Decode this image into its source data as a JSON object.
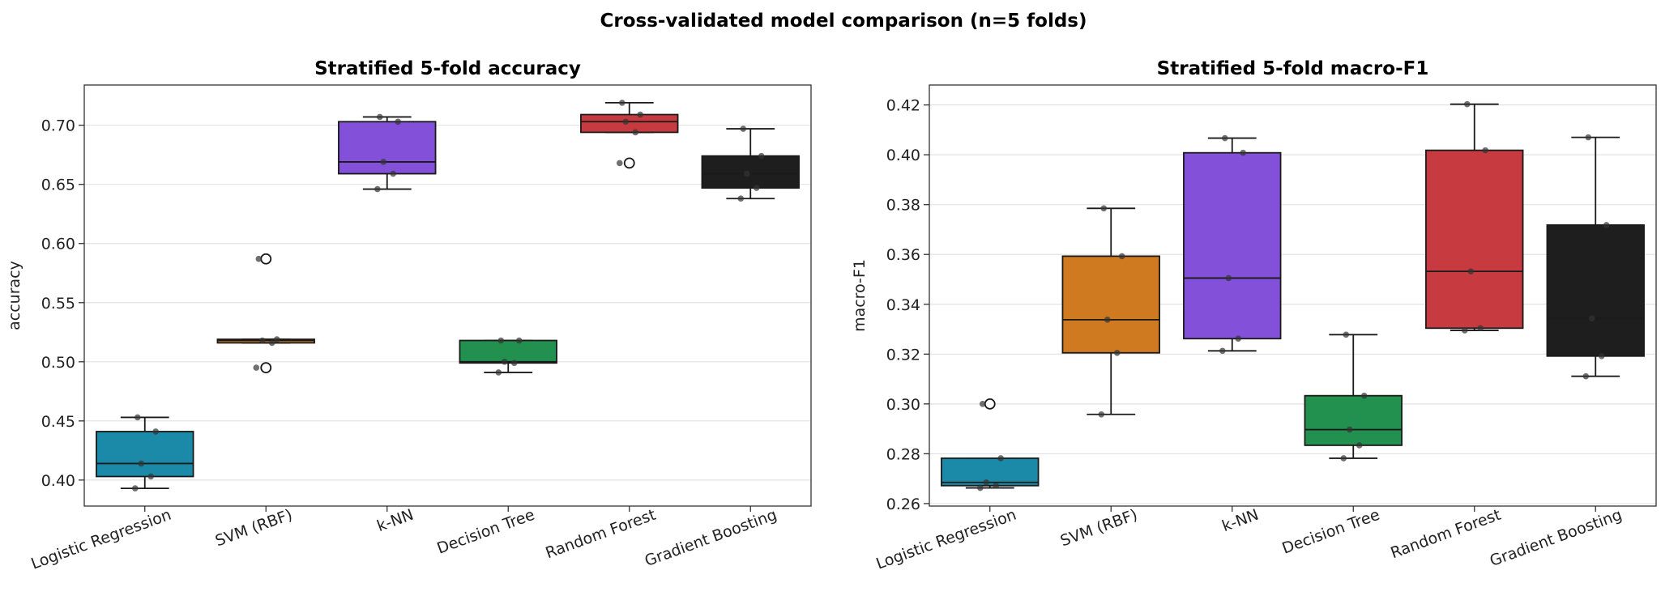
{
  "figure": {
    "suptitle": "Cross-validated model comparison (n=5 folds)"
  },
  "chart_data": [
    {
      "type": "box",
      "title": "Stratified 5-fold accuracy",
      "xlabel": "",
      "ylabel": "accuracy",
      "ylim": [
        0.378,
        0.734
      ],
      "yticks": [
        0.4,
        0.45,
        0.5,
        0.55,
        0.6,
        0.65,
        0.7
      ],
      "ytick_labels": [
        "0.40",
        "0.45",
        "0.50",
        "0.55",
        "0.60",
        "0.65",
        "0.70"
      ],
      "grid": "y",
      "categories": [
        "Logistic Regression",
        "SVM (RBF)",
        "k-NN",
        "Decision Tree",
        "Random Forest",
        "Gradient Boosting"
      ],
      "colors": [
        "#1a8aa8",
        "#cf7a20",
        "#8350d9",
        "#229150",
        "#c73a3f",
        "#1e1e1e"
      ],
      "boxes": [
        {
          "q1": 0.403,
          "median": 0.414,
          "q3": 0.441,
          "whisker_low": 0.393,
          "whisker_high": 0.453,
          "outliers": [],
          "points": [
            0.393,
            0.403,
            0.414,
            0.441,
            0.453
          ]
        },
        {
          "q1": 0.516,
          "median": 0.518,
          "q3": 0.519,
          "whisker_low": 0.516,
          "whisker_high": 0.519,
          "outliers": [
            0.495,
            0.587
          ],
          "points": [
            0.495,
            0.516,
            0.518,
            0.519,
            0.587
          ]
        },
        {
          "q1": 0.659,
          "median": 0.669,
          "q3": 0.703,
          "whisker_low": 0.646,
          "whisker_high": 0.707,
          "outliers": [],
          "points": [
            0.646,
            0.659,
            0.669,
            0.703,
            0.707
          ]
        },
        {
          "q1": 0.499,
          "median": 0.5,
          "q3": 0.518,
          "whisker_low": 0.491,
          "whisker_high": 0.518,
          "outliers": [],
          "points": [
            0.491,
            0.499,
            0.5,
            0.518,
            0.518
          ]
        },
        {
          "q1": 0.694,
          "median": 0.703,
          "q3": 0.709,
          "whisker_low": 0.694,
          "whisker_high": 0.719,
          "outliers": [
            0.668
          ],
          "points": [
            0.668,
            0.694,
            0.703,
            0.709,
            0.719
          ]
        },
        {
          "q1": 0.647,
          "median": 0.659,
          "q3": 0.674,
          "whisker_low": 0.638,
          "whisker_high": 0.697,
          "outliers": [],
          "points": [
            0.638,
            0.647,
            0.659,
            0.674,
            0.697
          ]
        }
      ]
    },
    {
      "type": "box",
      "title": "Stratified 5-fold macro-F1",
      "xlabel": "",
      "ylabel": "macro-F1",
      "ylim": [
        0.259,
        0.428
      ],
      "yticks": [
        0.26,
        0.28,
        0.3,
        0.32,
        0.34,
        0.36,
        0.38,
        0.4,
        0.42
      ],
      "ytick_labels": [
        "0.26",
        "0.28",
        "0.30",
        "0.32",
        "0.34",
        "0.36",
        "0.38",
        "0.40",
        "0.42"
      ],
      "grid": "y",
      "categories": [
        "Logistic Regression",
        "SVM (RBF)",
        "k-NN",
        "Decision Tree",
        "Random Forest",
        "Gradient Boosting"
      ],
      "colors": [
        "#1a8aa8",
        "#cf7a20",
        "#8350d9",
        "#229150",
        "#c73a3f",
        "#1e1e1e"
      ],
      "boxes": [
        {
          "q1": 0.2672,
          "median": 0.2685,
          "q3": 0.2782,
          "whisker_low": 0.2663,
          "whisker_high": 0.2782,
          "outliers": [
            0.3
          ],
          "points": [
            0.2663,
            0.2672,
            0.2685,
            0.2782,
            0.3
          ]
        },
        {
          "q1": 0.3205,
          "median": 0.3338,
          "q3": 0.3593,
          "whisker_low": 0.2958,
          "whisker_high": 0.3785,
          "outliers": [],
          "points": [
            0.2958,
            0.3205,
            0.3338,
            0.3593,
            0.3785
          ]
        },
        {
          "q1": 0.3262,
          "median": 0.3505,
          "q3": 0.4008,
          "whisker_low": 0.3213,
          "whisker_high": 0.4067,
          "outliers": [],
          "points": [
            0.3213,
            0.3262,
            0.3505,
            0.4008,
            0.4067
          ]
        },
        {
          "q1": 0.2834,
          "median": 0.2897,
          "q3": 0.3033,
          "whisker_low": 0.2782,
          "whisker_high": 0.3278,
          "outliers": [],
          "points": [
            0.2782,
            0.2834,
            0.2897,
            0.3033,
            0.3278
          ]
        },
        {
          "q1": 0.3304,
          "median": 0.3532,
          "q3": 0.4018,
          "whisker_low": 0.3295,
          "whisker_high": 0.4203,
          "outliers": [],
          "points": [
            0.3295,
            0.3304,
            0.3532,
            0.4018,
            0.4203
          ]
        },
        {
          "q1": 0.3192,
          "median": 0.3343,
          "q3": 0.3718,
          "whisker_low": 0.3111,
          "whisker_high": 0.407,
          "outliers": [],
          "points": [
            0.3111,
            0.3192,
            0.3343,
            0.3718,
            0.407
          ]
        }
      ]
    }
  ]
}
